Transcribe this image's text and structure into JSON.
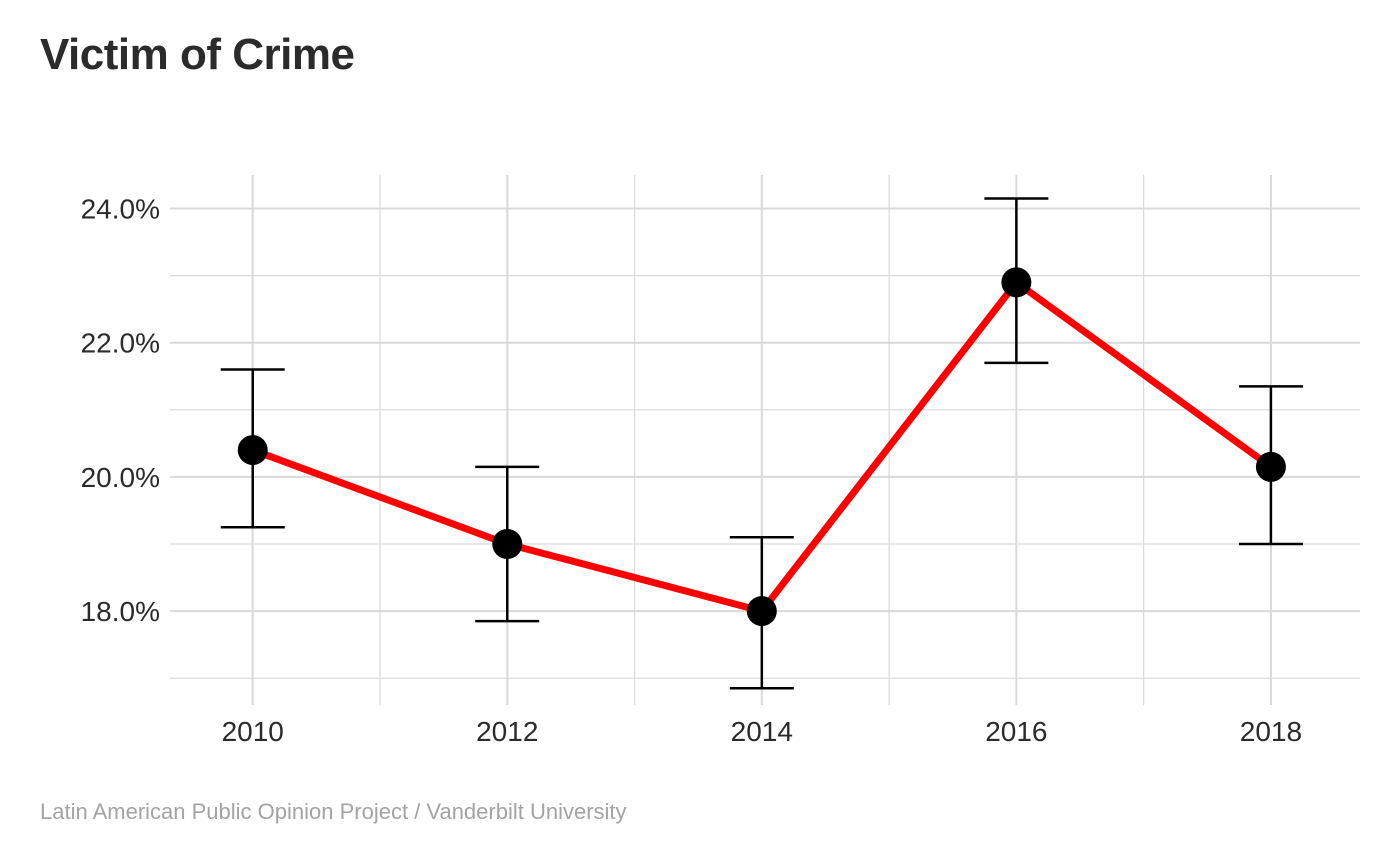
{
  "title": "Victim of Crime",
  "caption": "Latin American Public Opinion Project / Vanderbilt University",
  "chart_data": {
    "type": "line",
    "x": [
      2010,
      2012,
      2014,
      2016,
      2018
    ],
    "series": [
      {
        "values": [
          20.4,
          19.0,
          18.0,
          22.9,
          20.15
        ],
        "ci_lower": [
          19.25,
          17.85,
          16.85,
          21.7,
          19.0
        ],
        "ci_upper": [
          21.6,
          20.15,
          19.1,
          24.15,
          21.35
        ],
        "line_color": "#ff0000",
        "point_color": "#000000",
        "errorbar_color": "#000000"
      }
    ],
    "x_ticks": [
      2010,
      2012,
      2014,
      2016,
      2018
    ],
    "x_tick_labels": [
      "2010",
      "2012",
      "2014",
      "2016",
      "2018"
    ],
    "y_ticks": [
      18,
      20,
      22,
      24
    ],
    "y_tick_labels": [
      "18.0%",
      "20.0%",
      "22.0%",
      "24.0%"
    ],
    "xlim": [
      2009.35,
      2018.7
    ],
    "ylim": [
      16.6,
      24.5
    ],
    "grid": true,
    "grid_color": "#d9d9d9",
    "xlabel": "",
    "ylabel": ""
  }
}
